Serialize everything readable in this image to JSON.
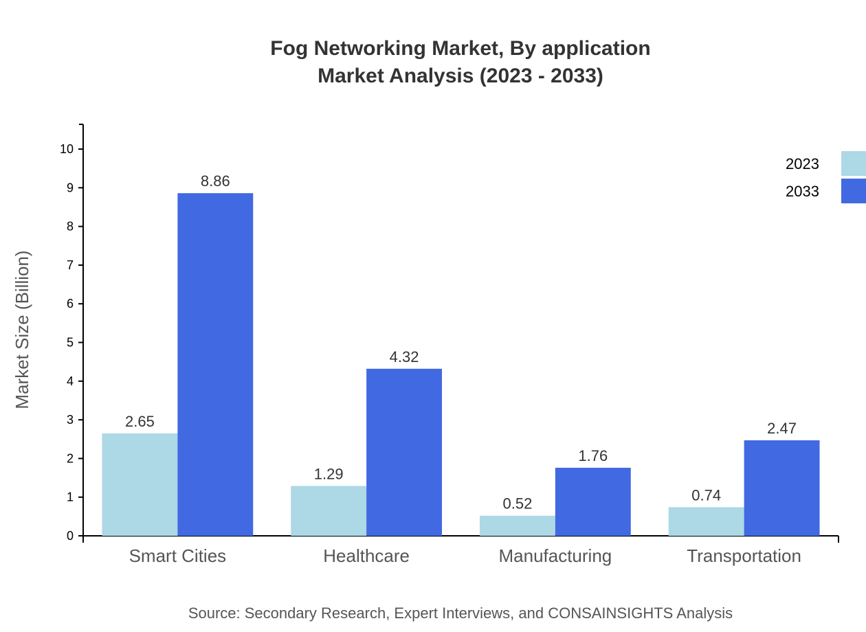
{
  "chart_data": {
    "type": "bar",
    "title": "Fog Networking Market, By application",
    "subtitle": "Market Analysis (2023 - 2033)",
    "xlabel": "",
    "ylabel": "Market Size (Billion)",
    "ylim": [
      0,
      10.64
    ],
    "yticks": [
      0,
      1,
      2,
      3,
      4,
      5,
      6,
      7,
      8,
      9,
      10
    ],
    "grid": false,
    "legend_position": "top-right",
    "categories": [
      "Smart Cities",
      "Healthcare",
      "Manufacturing",
      "Transportation"
    ],
    "series": [
      {
        "name": "2023",
        "color": "#ADD8E6",
        "values": [
          2.65,
          1.29,
          0.52,
          0.74
        ]
      },
      {
        "name": "2033",
        "color": "#4169E1",
        "values": [
          8.86,
          4.32,
          1.76,
          2.47
        ]
      }
    ],
    "source": "Source: Secondary Research, Expert Interviews, and CONSAINSIGHTS Analysis"
  }
}
